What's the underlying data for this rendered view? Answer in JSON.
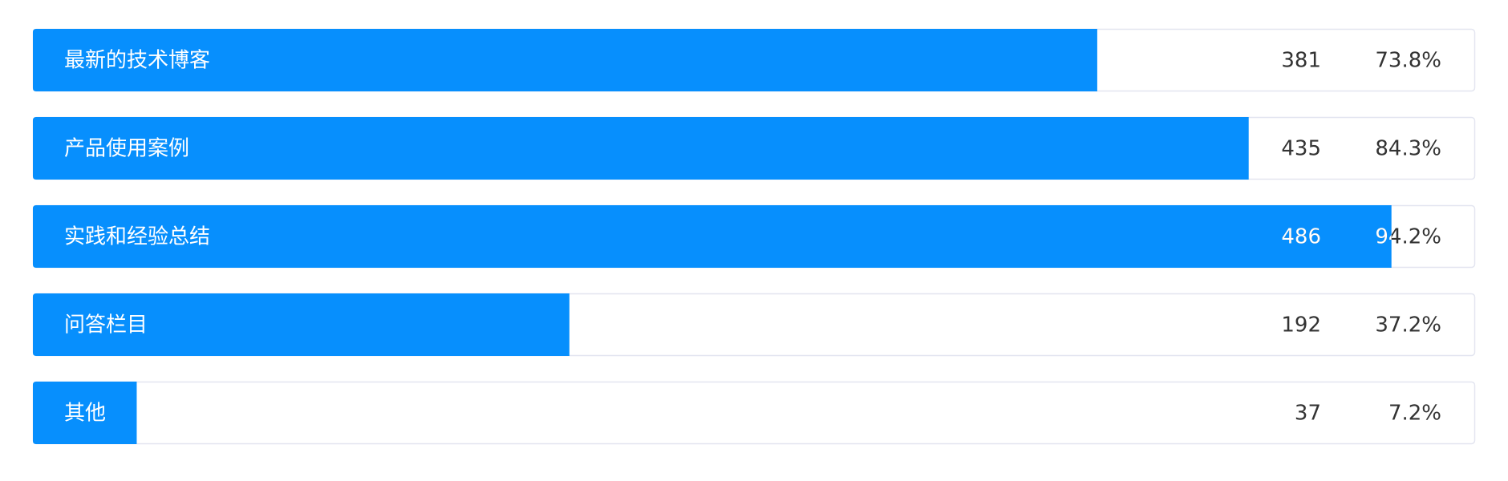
{
  "chart_data": {
    "type": "progress",
    "categories": [
      "最新的技术博客",
      "产品使用案例",
      "实践和经验总结",
      "问答栏目",
      "其他"
    ],
    "counts": [
      381,
      435,
      486,
      192,
      37
    ],
    "values": [
      73.8,
      84.3,
      94.2,
      37.2,
      7.2
    ],
    "value_labels": [
      "73.8%",
      "84.3%",
      "94.2%",
      "37.2%",
      "7.2%"
    ],
    "xlim": [
      0,
      100
    ],
    "color": "#078ffd"
  }
}
